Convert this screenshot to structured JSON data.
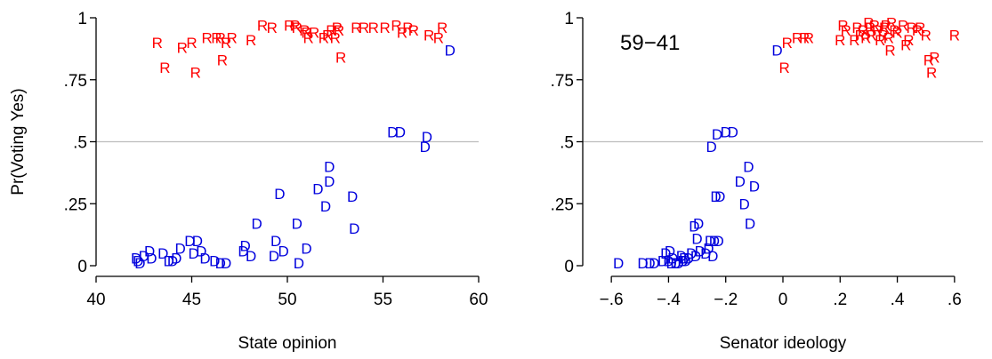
{
  "colors": {
    "R": "#ff0000",
    "D": "#0000dd",
    "refline": "#bdbdbd",
    "axis": "#000000"
  },
  "chart_data": [
    {
      "type": "scatter",
      "xlabel": "State opinion",
      "ylabel": "Pr(Voting Yes)",
      "xlim": [
        40,
        60
      ],
      "ylim": [
        0,
        1
      ],
      "xticks": [
        40,
        45,
        50,
        55,
        60
      ],
      "xtick_labels": [
        "40",
        "45",
        "50",
        "55",
        "60"
      ],
      "yticks": [
        0,
        0.25,
        0.5,
        0.75,
        1
      ],
      "ytick_labels": [
        "0",
        ".25",
        ".5",
        ".75",
        "1"
      ],
      "hline": 0.5,
      "annotation": "",
      "series": [
        {
          "name": "R",
          "points": [
            [
              43.2,
              0.9
            ],
            [
              43.6,
              0.8
            ],
            [
              44.5,
              0.88
            ],
            [
              45.0,
              0.9
            ],
            [
              45.2,
              0.78
            ],
            [
              45.8,
              0.92
            ],
            [
              46.3,
              0.92
            ],
            [
              46.5,
              0.92
            ],
            [
              46.6,
              0.83
            ],
            [
              46.8,
              0.9
            ],
            [
              47.1,
              0.92
            ],
            [
              48.1,
              0.91
            ],
            [
              48.7,
              0.97
            ],
            [
              49.2,
              0.96
            ],
            [
              50.1,
              0.97
            ],
            [
              50.4,
              0.97
            ],
            [
              50.5,
              0.96
            ],
            [
              50.9,
              0.95
            ],
            [
              51.0,
              0.94
            ],
            [
              51.1,
              0.92
            ],
            [
              51.4,
              0.94
            ],
            [
              51.9,
              0.92
            ],
            [
              52.1,
              0.93
            ],
            [
              52.3,
              0.95
            ],
            [
              52.5,
              0.92
            ],
            [
              52.6,
              0.96
            ],
            [
              52.7,
              0.95
            ],
            [
              52.8,
              0.84
            ],
            [
              53.6,
              0.96
            ],
            [
              54.0,
              0.96
            ],
            [
              54.5,
              0.96
            ],
            [
              55.1,
              0.96
            ],
            [
              55.7,
              0.97
            ],
            [
              56.0,
              0.94
            ],
            [
              56.3,
              0.96
            ],
            [
              56.6,
              0.95
            ],
            [
              57.4,
              0.93
            ],
            [
              57.9,
              0.92
            ],
            [
              58.1,
              0.96
            ]
          ]
        },
        {
          "name": "D",
          "points": [
            [
              42.1,
              0.03
            ],
            [
              42.2,
              0.02
            ],
            [
              42.3,
              0.01
            ],
            [
              42.5,
              0.04
            ],
            [
              42.8,
              0.06
            ],
            [
              42.9,
              0.03
            ],
            [
              43.5,
              0.05
            ],
            [
              43.8,
              0.02
            ],
            [
              44.0,
              0.02
            ],
            [
              44.2,
              0.03
            ],
            [
              44.4,
              0.07
            ],
            [
              44.9,
              0.1
            ],
            [
              45.1,
              0.05
            ],
            [
              45.3,
              0.1
            ],
            [
              45.5,
              0.06
            ],
            [
              45.7,
              0.03
            ],
            [
              46.2,
              0.02
            ],
            [
              46.5,
              0.01
            ],
            [
              46.8,
              0.01
            ],
            [
              47.7,
              0.06
            ],
            [
              47.8,
              0.08
            ],
            [
              48.1,
              0.04
            ],
            [
              48.4,
              0.17
            ],
            [
              49.3,
              0.04
            ],
            [
              49.4,
              0.1
            ],
            [
              49.6,
              0.29
            ],
            [
              49.8,
              0.06
            ],
            [
              50.5,
              0.17
            ],
            [
              50.6,
              0.01
            ],
            [
              51.0,
              0.07
            ],
            [
              51.6,
              0.31
            ],
            [
              52.0,
              0.24
            ],
            [
              52.2,
              0.34
            ],
            [
              52.2,
              0.4
            ],
            [
              53.4,
              0.28
            ],
            [
              53.5,
              0.15
            ],
            [
              55.5,
              0.54
            ],
            [
              55.9,
              0.54
            ],
            [
              57.2,
              0.48
            ],
            [
              57.3,
              0.52
            ],
            [
              58.5,
              0.87
            ]
          ]
        }
      ]
    },
    {
      "type": "scatter",
      "xlabel": "Senator ideology",
      "ylabel": "",
      "xlim": [
        -0.7,
        0.7
      ],
      "ylim": [
        0,
        1
      ],
      "xticks": [
        -0.6,
        -0.4,
        -0.2,
        0,
        0.2,
        0.4,
        0.6
      ],
      "xtick_labels": [
        "−.6",
        "−.4",
        "−.2",
        "0",
        ".2",
        ".4",
        ".6"
      ],
      "yticks": [
        0,
        0.25,
        0.5,
        0.75,
        1
      ],
      "ytick_labels": [
        "0",
        ".25",
        ".5",
        ".75",
        "1"
      ],
      "hline": 0.5,
      "annotation": "59−41",
      "series": [
        {
          "name": "R",
          "points": [
            [
              0.005,
              0.8
            ],
            [
              0.015,
              0.9
            ],
            [
              0.05,
              0.92
            ],
            [
              0.075,
              0.92
            ],
            [
              0.09,
              0.92
            ],
            [
              0.2,
              0.91
            ],
            [
              0.21,
              0.97
            ],
            [
              0.22,
              0.95
            ],
            [
              0.25,
              0.91
            ],
            [
              0.26,
              0.96
            ],
            [
              0.27,
              0.93
            ],
            [
              0.28,
              0.95
            ],
            [
              0.29,
              0.92
            ],
            [
              0.3,
              0.98
            ],
            [
              0.305,
              0.96
            ],
            [
              0.31,
              0.93
            ],
            [
              0.32,
              0.97
            ],
            [
              0.33,
              0.95
            ],
            [
              0.34,
              0.91
            ],
            [
              0.35,
              0.93
            ],
            [
              0.355,
              0.96
            ],
            [
              0.36,
              0.97
            ],
            [
              0.37,
              0.92
            ],
            [
              0.375,
              0.87
            ],
            [
              0.38,
              0.98
            ],
            [
              0.39,
              0.95
            ],
            [
              0.4,
              0.94
            ],
            [
              0.42,
              0.97
            ],
            [
              0.43,
              0.89
            ],
            [
              0.44,
              0.91
            ],
            [
              0.45,
              0.96
            ],
            [
              0.47,
              0.95
            ],
            [
              0.48,
              0.96
            ],
            [
              0.5,
              0.93
            ],
            [
              0.51,
              0.83
            ],
            [
              0.52,
              0.78
            ],
            [
              0.53,
              0.84
            ],
            [
              0.6,
              0.93
            ]
          ]
        },
        {
          "name": "D",
          "points": [
            [
              -0.575,
              0.01
            ],
            [
              -0.49,
              0.01
            ],
            [
              -0.465,
              0.01
            ],
            [
              -0.45,
              0.01
            ],
            [
              -0.42,
              0.02
            ],
            [
              -0.41,
              0.05
            ],
            [
              -0.4,
              0.02
            ],
            [
              -0.395,
              0.06
            ],
            [
              -0.39,
              0.01
            ],
            [
              -0.385,
              0.03
            ],
            [
              -0.375,
              0.01
            ],
            [
              -0.365,
              0.01
            ],
            [
              -0.355,
              0.04
            ],
            [
              -0.35,
              0.02
            ],
            [
              -0.345,
              0.03
            ],
            [
              -0.34,
              0.02
            ],
            [
              -0.33,
              0.03
            ],
            [
              -0.32,
              0.05
            ],
            [
              -0.31,
              0.16
            ],
            [
              -0.305,
              0.04
            ],
            [
              -0.3,
              0.11
            ],
            [
              -0.295,
              0.17
            ],
            [
              -0.29,
              0.06
            ],
            [
              -0.27,
              0.05
            ],
            [
              -0.26,
              0.07
            ],
            [
              -0.255,
              0.1
            ],
            [
              -0.25,
              0.48
            ],
            [
              -0.245,
              0.04
            ],
            [
              -0.24,
              0.1
            ],
            [
              -0.235,
              0.28
            ],
            [
              -0.23,
              0.53
            ],
            [
              -0.225,
              0.1
            ],
            [
              -0.22,
              0.28
            ],
            [
              -0.2,
              0.54
            ],
            [
              -0.175,
              0.54
            ],
            [
              -0.15,
              0.34
            ],
            [
              -0.135,
              0.25
            ],
            [
              -0.12,
              0.4
            ],
            [
              -0.115,
              0.17
            ],
            [
              -0.1,
              0.32
            ],
            [
              -0.02,
              0.87
            ]
          ]
        }
      ]
    }
  ]
}
